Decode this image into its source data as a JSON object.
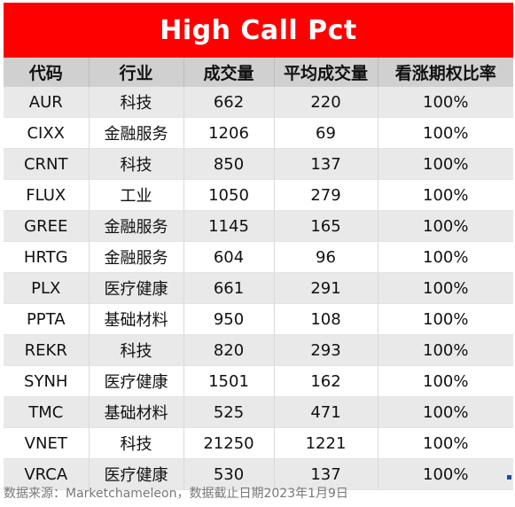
{
  "title": "High Call Pct",
  "columns": [
    "代码",
    "行业",
    "成交量",
    "平均成交量",
    "看涨期权比率"
  ],
  "rows": [
    [
      "AUR",
      "科技",
      "662",
      "220",
      "100%"
    ],
    [
      "CIXX",
      "金融服务",
      "1206",
      "69",
      "100%"
    ],
    [
      "CRNT",
      "科技",
      "850",
      "137",
      "100%"
    ],
    [
      "FLUX",
      "工业",
      "1050",
      "279",
      "100%"
    ],
    [
      "GREE",
      "金融服务",
      "1145",
      "165",
      "100%"
    ],
    [
      "HRTG",
      "金融服务",
      "604",
      "96",
      "100%"
    ],
    [
      "PLX",
      "医疗健康",
      "661",
      "291",
      "100%"
    ],
    [
      "PPTA",
      "基础材料",
      "950",
      "108",
      "100%"
    ],
    [
      "REKR",
      "科技",
      "820",
      "293",
      "100%"
    ],
    [
      "SYNH",
      "医疗健康",
      "1501",
      "162",
      "100%"
    ],
    [
      "TMC",
      "基础材料",
      "525",
      "471",
      "100%"
    ],
    [
      "VNET",
      "科技",
      "21250",
      "1221",
      "100%"
    ],
    [
      "VRCA",
      "医疗健康",
      "530",
      "137",
      "100%"
    ]
  ],
  "source": "数据来源：Marketchameleon，数据截止日期2023年1月9日",
  "colors": {
    "title_bg": "#ff0000",
    "title_text": "#ffffff",
    "header_bg": "#d0d0d0",
    "row_alt_bg": "#e9e9e9"
  }
}
